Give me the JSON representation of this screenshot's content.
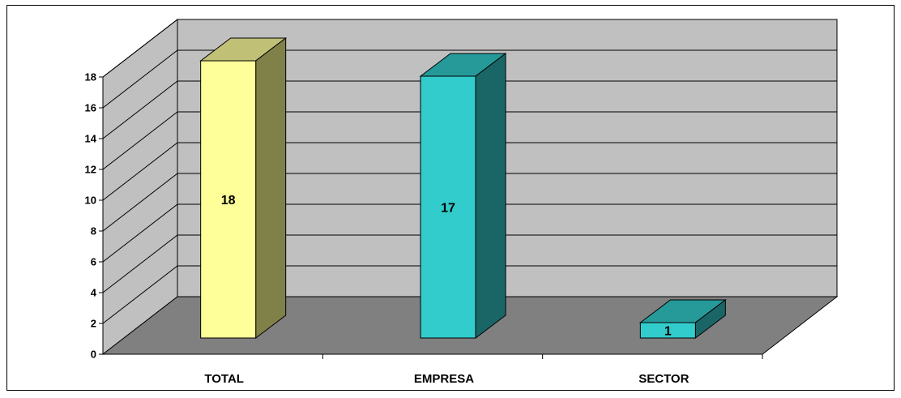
{
  "chart_data": {
    "type": "bar",
    "categories": [
      "TOTAL",
      "EMPRESA",
      "SECTOR"
    ],
    "values": [
      18,
      17,
      1
    ],
    "data_labels": [
      "18",
      "17",
      "1"
    ],
    "ylim": [
      0,
      18
    ],
    "yticks": [
      0,
      2,
      4,
      6,
      8,
      10,
      12,
      14,
      16,
      18
    ],
    "grid": true,
    "three_d": true,
    "colors": {
      "wall": "#C0C0C0",
      "floor": "#808080",
      "bars": [
        {
          "front": "#FFFF99",
          "side": "#808049",
          "top": "#C0C077"
        },
        {
          "front": "#33CCCC",
          "side": "#1A6666",
          "top": "#269999"
        },
        {
          "front": "#33CCCC",
          "side": "#1A6666",
          "top": "#269999"
        }
      ]
    }
  }
}
